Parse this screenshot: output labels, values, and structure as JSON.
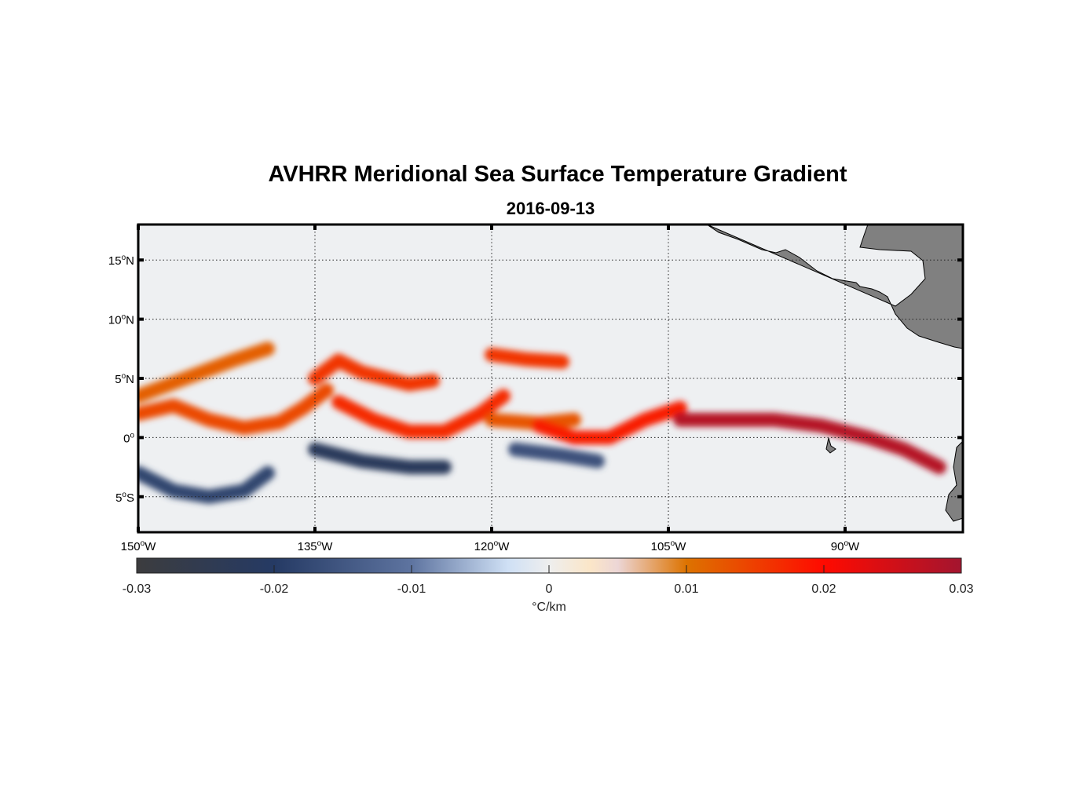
{
  "chart_data": {
    "type": "heatmap",
    "title": "AVHRR Meridional Sea Surface Temperature Gradient",
    "subtitle": "2016-09-13",
    "xlim": [
      -150,
      -80
    ],
    "ylim": [
      -8,
      18
    ],
    "grid": true,
    "x_ticks": [
      {
        "value": -150,
        "num": "150",
        "hemi": "W"
      },
      {
        "value": -135,
        "num": "135",
        "hemi": "W"
      },
      {
        "value": -120,
        "num": "120",
        "hemi": "W"
      },
      {
        "value": -105,
        "num": "105",
        "hemi": "W"
      },
      {
        "value": -90,
        "num": "90",
        "hemi": "W"
      }
    ],
    "y_ticks": [
      {
        "value": 15,
        "num": "15",
        "hemi": "N"
      },
      {
        "value": 10,
        "num": "10",
        "hemi": "N"
      },
      {
        "value": 5,
        "num": "5",
        "hemi": "N"
      },
      {
        "value": 0,
        "num": "0",
        "hemi": ""
      },
      {
        "value": -5,
        "num": "5",
        "hemi": "S"
      }
    ],
    "colorbar": {
      "label": "°C/km",
      "range": [
        -0.03,
        0.03
      ],
      "ticks": [
        -0.03,
        -0.02,
        -0.01,
        0,
        0.01,
        0.02,
        0.03
      ],
      "tick_labels": [
        "-0.03",
        "-0.02",
        "-0.01",
        "0",
        "0.01",
        "0.02",
        "0.03"
      ],
      "stops": [
        {
          "v": -0.03,
          "c": "#3c3c3e"
        },
        {
          "v": -0.02,
          "c": "#253a64"
        },
        {
          "v": -0.01,
          "c": "#5e74a0"
        },
        {
          "v": -0.003,
          "c": "#cfe0f5"
        },
        {
          "v": 0,
          "c": "#eeeeee"
        },
        {
          "v": 0.003,
          "c": "#fbe6c8"
        },
        {
          "v": 0.005,
          "c": "#ecd6d6"
        },
        {
          "v": 0.01,
          "c": "#dd7300"
        },
        {
          "v": 0.02,
          "c": "#ff0a00"
        },
        {
          "v": 0.03,
          "c": "#a3152f"
        }
      ]
    },
    "land_color": "#808080",
    "features": [
      {
        "name": "equatorial-front-west",
        "lon": [
          -150,
          -147,
          -144,
          -141,
          -138,
          -136,
          -134
        ],
        "lat": [
          2,
          2.7,
          1.5,
          0.8,
          1.3,
          2.5,
          4
        ],
        "value": 0.014
      },
      {
        "name": "equatorial-front-west-north",
        "lon": [
          -150,
          -146,
          -142,
          -139
        ],
        "lat": [
          3.5,
          5,
          6.5,
          7.5
        ],
        "value": 0.012
      },
      {
        "name": "tiw-crest-1",
        "lon": [
          -135,
          -133,
          -131,
          -129,
          -127,
          -125
        ],
        "lat": [
          5,
          6.5,
          5.5,
          5,
          4.5,
          4.8
        ],
        "value": 0.016
      },
      {
        "name": "tiw-trough-1",
        "lon": [
          -133,
          -130,
          -127,
          -124,
          -121,
          -119
        ],
        "lat": [
          3,
          1.5,
          0.5,
          0.5,
          2,
          3.5
        ],
        "value": 0.017
      },
      {
        "name": "tiw-crest-2",
        "lon": [
          -120,
          -117,
          -114
        ],
        "lat": [
          7,
          6.6,
          6.4
        ],
        "value": 0.016
      },
      {
        "name": "tiw-mid-2",
        "lon": [
          -120,
          -116,
          -113
        ],
        "lat": [
          1.5,
          1.2,
          1.5
        ],
        "value": 0.013
      },
      {
        "name": "tiw-trough-2",
        "lon": [
          -116,
          -113,
          -110,
          -107,
          -104
        ],
        "lat": [
          1,
          0,
          0,
          1.5,
          2.5
        ],
        "value": 0.018
      },
      {
        "name": "eastern-front",
        "lon": [
          -104,
          -100,
          -96,
          -92,
          -88,
          -85,
          -82
        ],
        "lat": [
          1.5,
          1.5,
          1.5,
          1,
          0,
          -1,
          -2.5
        ],
        "value": 0.028
      },
      {
        "name": "southern-negative-1",
        "lon": [
          -150,
          -147,
          -144,
          -141,
          -139
        ],
        "lat": [
          -3,
          -4.5,
          -5,
          -4.5,
          -3
        ],
        "value": -0.018
      },
      {
        "name": "southern-negative-2",
        "lon": [
          -135,
          -131,
          -127,
          -124
        ],
        "lat": [
          -1,
          -2,
          -2.5,
          -2.5
        ],
        "value": -0.022
      },
      {
        "name": "southern-negative-3",
        "lon": [
          -118,
          -114,
          -111
        ],
        "lat": [
          -1,
          -1.5,
          -2
        ],
        "value": -0.016
      }
    ]
  }
}
